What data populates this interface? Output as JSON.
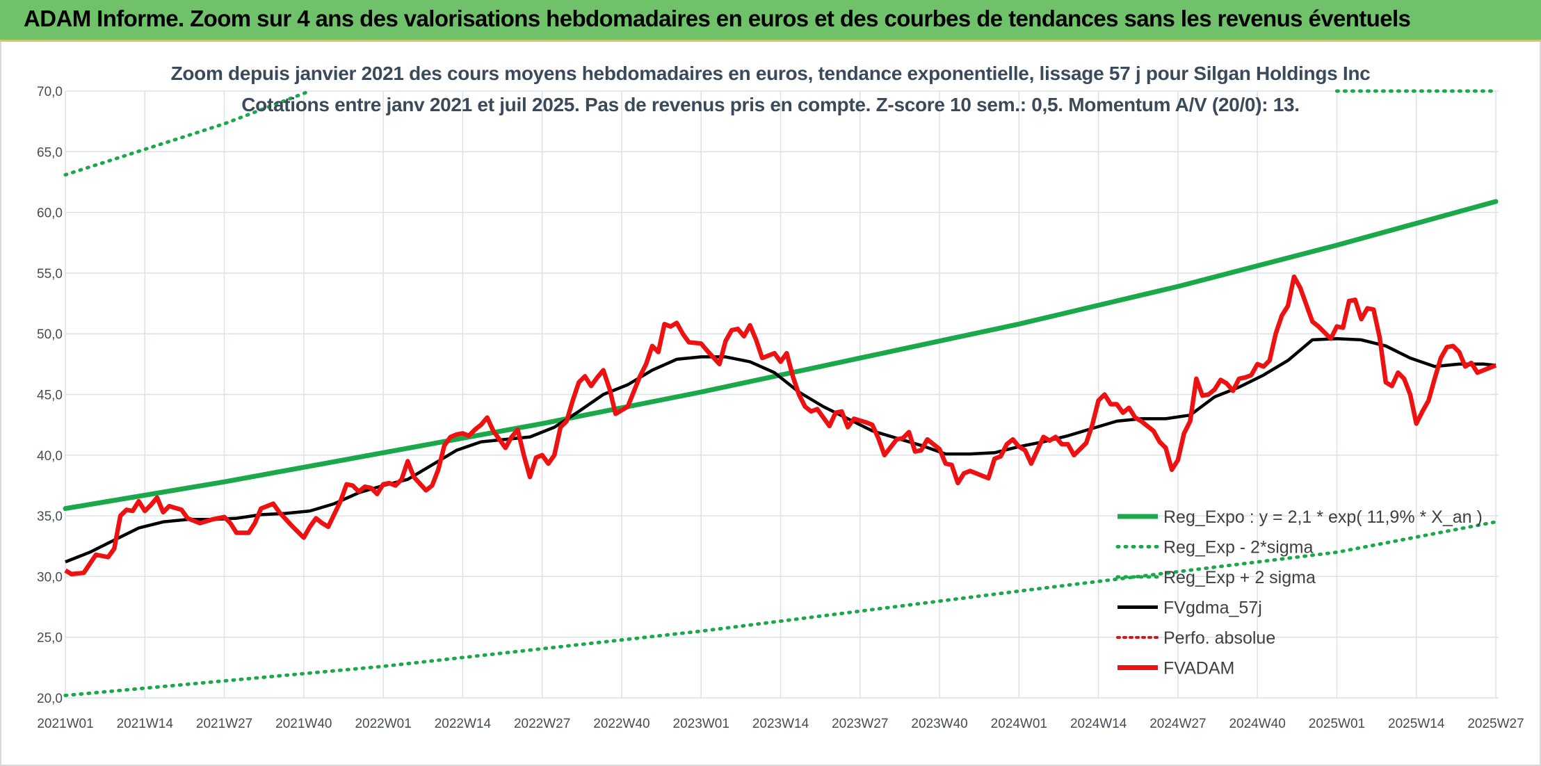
{
  "header": {
    "title": "ADAM Informe. Zoom sur 4 ans des valorisations hebdomadaires en euros et des courbes de tendances sans les revenus éventuels"
  },
  "chart_data": {
    "type": "line",
    "subtitle_line1": "Zoom depuis janvier 2021 des cours moyens hebdomadaires en euros, tendance exponentielle, lissage 57 j pour Silgan Holdings Inc",
    "subtitle_line2": "Cotations entre janv 2021 et juil 2025. Pas de revenus pris en compte. Z-score 10 sem.: 0,5. Momentum A/V (20/0): 13.",
    "ylim": [
      20,
      70
    ],
    "yticks": [
      "20,0",
      "25,0",
      "30,0",
      "35,0",
      "40,0",
      "45,0",
      "50,0",
      "55,0",
      "60,0",
      "65,0",
      "70,0"
    ],
    "ytick_values": [
      20,
      25,
      30,
      35,
      40,
      45,
      50,
      55,
      60,
      65,
      70
    ],
    "xticks": [
      "2021W01",
      "2021W14",
      "2021W27",
      "2021W40",
      "2022W01",
      "2022W14",
      "2022W27",
      "2022W40",
      "2023W01",
      "2023W14",
      "2023W27",
      "2023W40",
      "2024W01",
      "2024W14",
      "2024W27",
      "2024W40",
      "2025W01",
      "2025W14",
      "2025W27"
    ],
    "xtick_index": [
      0,
      13,
      26,
      39,
      52,
      65,
      78,
      91,
      104,
      117,
      130,
      143,
      156,
      169,
      182,
      195,
      208,
      221,
      234
    ],
    "grid": true,
    "legend_position": "lower-right",
    "colors": {
      "reg_expo": "#1aa84a",
      "reg_minus": "#1aa84a",
      "reg_plus": "#1aa84a",
      "fv57": "#000000",
      "perfo": "#e01010",
      "fvadam": "#ee1111",
      "grid": "#dde1e6"
    },
    "legend": [
      {
        "key": "reg_expo",
        "label": "Reg_Expo : y = 2,1 * exp( 11,9% *  X_an )",
        "style": "solid"
      },
      {
        "key": "reg_minus",
        "label": "Reg_Exp - 2*sigma",
        "style": "dotted"
      },
      {
        "key": "reg_plus",
        "label": "Reg_Exp + 2 sigma",
        "style": "dotted"
      },
      {
        "key": "fv57",
        "label": "FVgdma_57j",
        "style": "solid"
      },
      {
        "key": "perfo",
        "label": "Perfo. absolue",
        "style": "dotted"
      },
      {
        "key": "fvadam",
        "label": "FVADAM",
        "style": "solid"
      }
    ],
    "series": [
      {
        "key": "reg_expo",
        "label": "Reg_Expo : y = 2,1 * exp( 11,9% *  X_an )",
        "points": [
          [
            0,
            35.6
          ],
          [
            26,
            37.8
          ],
          [
            52,
            40.2
          ],
          [
            78,
            42.6
          ],
          [
            104,
            45.2
          ],
          [
            130,
            48.0
          ],
          [
            156,
            50.8
          ],
          [
            182,
            53.9
          ],
          [
            208,
            57.3
          ],
          [
            234,
            60.9
          ]
        ]
      },
      {
        "key": "reg_minus",
        "label": "Reg_Exp - 2*sigma",
        "points": [
          [
            0,
            20.2
          ],
          [
            52,
            22.6
          ],
          [
            104,
            25.5
          ],
          [
            156,
            28.8
          ],
          [
            208,
            32.0
          ],
          [
            234,
            34.5
          ]
        ]
      },
      {
        "key": "reg_plus",
        "label": "Reg_Exp + 2 sigma",
        "points": [
          [
            0,
            63.1
          ],
          [
            26,
            67.3
          ],
          [
            40,
            70.0
          ]
        ],
        "points_b": [
          [
            208,
            70.0
          ],
          [
            234,
            70.0
          ]
        ]
      },
      {
        "key": "fv57",
        "label": "FVgdma_57j",
        "points": [
          [
            0,
            31.2
          ],
          [
            4,
            32.0
          ],
          [
            8,
            33.0
          ],
          [
            12,
            34.0
          ],
          [
            16,
            34.5
          ],
          [
            20,
            34.7
          ],
          [
            24,
            34.7
          ],
          [
            28,
            34.8
          ],
          [
            32,
            35.1
          ],
          [
            36,
            35.2
          ],
          [
            40,
            35.4
          ],
          [
            44,
            36.0
          ],
          [
            48,
            36.9
          ],
          [
            52,
            37.5
          ],
          [
            56,
            38.0
          ],
          [
            60,
            39.2
          ],
          [
            64,
            40.4
          ],
          [
            68,
            41.1
          ],
          [
            72,
            41.3
          ],
          [
            76,
            41.5
          ],
          [
            80,
            42.3
          ],
          [
            84,
            43.6
          ],
          [
            88,
            45.0
          ],
          [
            92,
            45.8
          ],
          [
            96,
            47.0
          ],
          [
            100,
            47.9
          ],
          [
            104,
            48.1
          ],
          [
            108,
            48.1
          ],
          [
            112,
            47.7
          ],
          [
            116,
            46.8
          ],
          [
            120,
            45.2
          ],
          [
            124,
            44.0
          ],
          [
            128,
            43.0
          ],
          [
            132,
            42.0
          ],
          [
            136,
            41.4
          ],
          [
            140,
            40.8
          ],
          [
            144,
            40.1
          ],
          [
            148,
            40.1
          ],
          [
            152,
            40.2
          ],
          [
            156,
            40.7
          ],
          [
            160,
            41.1
          ],
          [
            164,
            41.6
          ],
          [
            168,
            42.2
          ],
          [
            172,
            42.8
          ],
          [
            176,
            43.0
          ],
          [
            180,
            43.0
          ],
          [
            184,
            43.3
          ],
          [
            188,
            44.8
          ],
          [
            192,
            45.6
          ],
          [
            196,
            46.6
          ],
          [
            200,
            47.8
          ],
          [
            204,
            49.5
          ],
          [
            208,
            49.6
          ],
          [
            212,
            49.5
          ],
          [
            216,
            49.0
          ],
          [
            220,
            48.0
          ],
          [
            224,
            47.3
          ],
          [
            228,
            47.5
          ],
          [
            232,
            47.5
          ],
          [
            234,
            47.4
          ]
        ]
      },
      {
        "key": "fvadam",
        "label": "FVADAM",
        "points": [
          [
            0,
            30.5
          ],
          [
            1,
            30.2
          ],
          [
            3,
            30.3
          ],
          [
            5,
            31.8
          ],
          [
            7,
            31.6
          ],
          [
            8,
            32.3
          ],
          [
            9,
            35.0
          ],
          [
            10,
            35.5
          ],
          [
            11,
            35.4
          ],
          [
            12,
            36.2
          ],
          [
            13,
            35.4
          ],
          [
            14,
            35.9
          ],
          [
            15,
            36.5
          ],
          [
            16,
            35.3
          ],
          [
            17,
            35.8
          ],
          [
            19,
            35.5
          ],
          [
            20,
            34.8
          ],
          [
            22,
            34.4
          ],
          [
            24,
            34.7
          ],
          [
            26,
            34.9
          ],
          [
            27,
            34.4
          ],
          [
            28,
            33.6
          ],
          [
            30,
            33.6
          ],
          [
            31,
            34.4
          ],
          [
            32,
            35.6
          ],
          [
            34,
            36.0
          ],
          [
            35,
            35.3
          ],
          [
            37,
            34.2
          ],
          [
            39,
            33.2
          ],
          [
            40,
            34.1
          ],
          [
            41,
            34.8
          ],
          [
            42,
            34.4
          ],
          [
            43,
            34.1
          ],
          [
            45,
            36.2
          ],
          [
            46,
            37.6
          ],
          [
            47,
            37.5
          ],
          [
            48,
            37.0
          ],
          [
            49,
            37.4
          ],
          [
            50,
            37.3
          ],
          [
            51,
            36.8
          ],
          [
            52,
            37.6
          ],
          [
            53,
            37.7
          ],
          [
            54,
            37.5
          ],
          [
            55,
            38.0
          ],
          [
            56,
            39.5
          ],
          [
            57,
            38.2
          ],
          [
            59,
            37.1
          ],
          [
            60,
            37.5
          ],
          [
            61,
            38.8
          ],
          [
            62,
            40.8
          ],
          [
            63,
            41.5
          ],
          [
            64,
            41.7
          ],
          [
            65,
            41.8
          ],
          [
            66,
            41.6
          ],
          [
            67,
            42.1
          ],
          [
            68,
            42.5
          ],
          [
            69,
            43.1
          ],
          [
            70,
            42.0
          ],
          [
            72,
            40.6
          ],
          [
            73,
            41.5
          ],
          [
            74,
            42.1
          ],
          [
            75,
            40.0
          ],
          [
            76,
            38.2
          ],
          [
            77,
            39.8
          ],
          [
            78,
            40.0
          ],
          [
            79,
            39.3
          ],
          [
            80,
            40.0
          ],
          [
            81,
            42.3
          ],
          [
            82,
            42.8
          ],
          [
            83,
            44.5
          ],
          [
            84,
            46.0
          ],
          [
            85,
            46.5
          ],
          [
            86,
            45.7
          ],
          [
            87,
            46.4
          ],
          [
            88,
            47.0
          ],
          [
            89,
            45.5
          ],
          [
            90,
            43.4
          ],
          [
            92,
            44.0
          ],
          [
            94,
            46.5
          ],
          [
            95,
            47.5
          ],
          [
            96,
            49.0
          ],
          [
            97,
            48.5
          ],
          [
            98,
            50.8
          ],
          [
            99,
            50.6
          ],
          [
            100,
            50.9
          ],
          [
            101,
            50.0
          ],
          [
            102,
            49.3
          ],
          [
            104,
            49.2
          ],
          [
            105,
            48.6
          ],
          [
            107,
            47.5
          ],
          [
            108,
            49.4
          ],
          [
            109,
            50.3
          ],
          [
            110,
            50.4
          ],
          [
            111,
            49.8
          ],
          [
            112,
            50.7
          ],
          [
            113,
            49.5
          ],
          [
            114,
            48.0
          ],
          [
            116,
            48.4
          ],
          [
            117,
            47.7
          ],
          [
            118,
            48.4
          ],
          [
            119,
            46.5
          ],
          [
            120,
            45.0
          ],
          [
            121,
            44.0
          ],
          [
            122,
            43.6
          ],
          [
            123,
            43.8
          ],
          [
            125,
            42.4
          ],
          [
            126,
            43.5
          ],
          [
            127,
            43.6
          ],
          [
            128,
            42.3
          ],
          [
            129,
            43.0
          ],
          [
            131,
            42.7
          ],
          [
            132,
            42.5
          ],
          [
            133,
            41.4
          ],
          [
            134,
            40.0
          ],
          [
            136,
            41.3
          ],
          [
            137,
            41.4
          ],
          [
            138,
            41.9
          ],
          [
            139,
            40.3
          ],
          [
            140,
            40.4
          ],
          [
            141,
            41.3
          ],
          [
            143,
            40.5
          ],
          [
            144,
            39.3
          ],
          [
            145,
            39.2
          ],
          [
            146,
            37.7
          ],
          [
            147,
            38.5
          ],
          [
            148,
            38.7
          ],
          [
            150,
            38.3
          ],
          [
            151,
            38.1
          ],
          [
            152,
            39.7
          ],
          [
            153,
            39.9
          ],
          [
            154,
            40.9
          ],
          [
            155,
            41.3
          ],
          [
            156,
            40.7
          ],
          [
            157,
            40.4
          ],
          [
            158,
            39.3
          ],
          [
            160,
            41.5
          ],
          [
            161,
            41.2
          ],
          [
            162,
            41.5
          ],
          [
            163,
            40.9
          ],
          [
            164,
            40.9
          ],
          [
            165,
            40.0
          ],
          [
            167,
            41.0
          ],
          [
            168,
            42.5
          ],
          [
            169,
            44.5
          ],
          [
            170,
            45.0
          ],
          [
            171,
            44.2
          ],
          [
            172,
            44.2
          ],
          [
            173,
            43.5
          ],
          [
            174,
            43.9
          ],
          [
            175,
            43.1
          ],
          [
            176,
            42.8
          ],
          [
            178,
            42.0
          ],
          [
            179,
            41.1
          ],
          [
            180,
            40.6
          ],
          [
            181,
            38.8
          ],
          [
            182,
            39.6
          ],
          [
            183,
            41.8
          ],
          [
            184,
            42.8
          ],
          [
            185,
            46.3
          ],
          [
            186,
            44.9
          ],
          [
            187,
            45.0
          ],
          [
            188,
            45.4
          ],
          [
            189,
            46.2
          ],
          [
            190,
            45.9
          ],
          [
            191,
            45.3
          ],
          [
            192,
            46.3
          ],
          [
            193,
            46.4
          ],
          [
            194,
            46.6
          ],
          [
            195,
            47.5
          ],
          [
            196,
            47.3
          ],
          [
            197,
            47.8
          ],
          [
            198,
            50.0
          ],
          [
            199,
            51.5
          ],
          [
            200,
            52.3
          ],
          [
            201,
            54.7
          ],
          [
            202,
            53.8
          ],
          [
            203,
            52.4
          ],
          [
            204,
            51.0
          ],
          [
            205,
            50.6
          ],
          [
            206,
            50.1
          ],
          [
            207,
            49.6
          ],
          [
            208,
            50.6
          ],
          [
            209,
            50.5
          ],
          [
            210,
            52.7
          ],
          [
            211,
            52.8
          ],
          [
            212,
            51.2
          ],
          [
            213,
            52.1
          ],
          [
            214,
            52.0
          ],
          [
            215,
            49.7
          ],
          [
            216,
            46.0
          ],
          [
            217,
            45.7
          ],
          [
            218,
            46.8
          ],
          [
            219,
            46.3
          ],
          [
            220,
            45.0
          ],
          [
            221,
            42.6
          ],
          [
            222,
            43.6
          ],
          [
            223,
            44.5
          ],
          [
            224,
            46.3
          ],
          [
            225,
            48.0
          ],
          [
            226,
            48.9
          ],
          [
            227,
            49.0
          ],
          [
            228,
            48.5
          ],
          [
            229,
            47.3
          ],
          [
            230,
            47.6
          ],
          [
            231,
            46.8
          ],
          [
            232,
            47.0
          ],
          [
            233,
            47.2
          ],
          [
            234,
            47.4
          ]
        ]
      }
    ]
  }
}
